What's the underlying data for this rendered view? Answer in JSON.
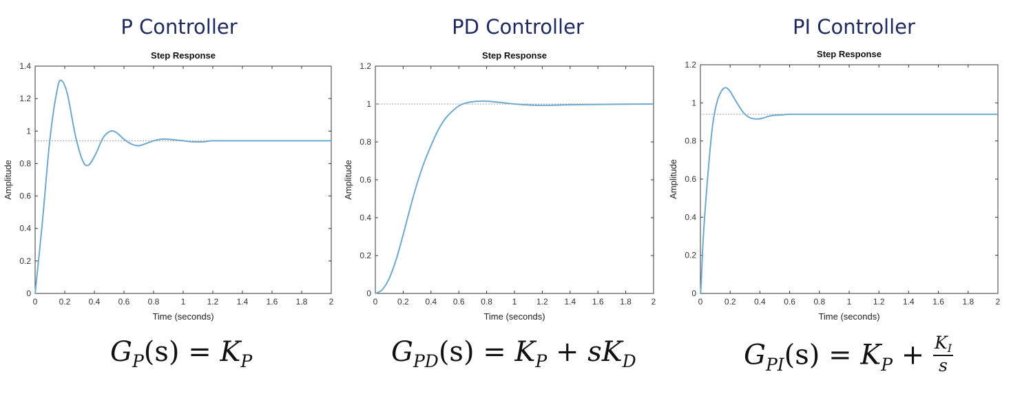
{
  "headings": [
    "P Controller",
    "PD Controller",
    "PI Controller"
  ],
  "formulas": {
    "p": {
      "G": "G",
      "sub": "P",
      "arg": "(s)",
      "eq": "=",
      "K": "K",
      "Ksub": "P"
    },
    "pd": {
      "G": "G",
      "sub": "PD",
      "arg": "(s)",
      "eq": "=",
      "K": "K",
      "Ksub": "P",
      "plus": "+",
      "s": "s",
      "K2": "K",
      "K2sub": "D"
    },
    "pi": {
      "G": "G",
      "sub": "PI",
      "arg": "(s)",
      "eq": "=",
      "K": "K",
      "Ksub": "P",
      "plus": "+",
      "num": "K",
      "numsub": "I",
      "den": "s"
    }
  },
  "colors": {
    "line": "#6ea8cf",
    "reference": "#999999",
    "axis": "#333333",
    "heading": "#1e2a5e"
  },
  "chart_data": [
    {
      "type": "line",
      "title": "Step Response",
      "xlabel": "Time (seconds)",
      "ylabel": "Amplitude",
      "xlim": [
        0,
        2
      ],
      "ylim": [
        0,
        1.4
      ],
      "xticks": [
        "0",
        "0.2",
        "0.4",
        "0.6",
        "0.8",
        "1",
        "1.2",
        "1.4",
        "1.6",
        "1.8",
        "2"
      ],
      "yticks": [
        "0",
        "0.2",
        "0.4",
        "0.6",
        "0.8",
        "1",
        "1.2",
        "1.4"
      ],
      "reference": 0.94,
      "series": [
        {
          "x": [
            0,
            0.05,
            0.1,
            0.15,
            0.18,
            0.22,
            0.27,
            0.32,
            0.36,
            0.41,
            0.46,
            0.51,
            0.55,
            0.6,
            0.65,
            0.7,
            0.74,
            0.8,
            0.85,
            0.9,
            0.95,
            1.0,
            1.05,
            1.1,
            1.15,
            1.2,
            1.4,
            1.6,
            2.0
          ],
          "y": [
            0,
            0.45,
            0.95,
            1.26,
            1.31,
            1.22,
            0.98,
            0.82,
            0.79,
            0.86,
            0.96,
            1.0,
            0.99,
            0.95,
            0.92,
            0.91,
            0.92,
            0.94,
            0.95,
            0.95,
            0.945,
            0.94,
            0.935,
            0.933,
            0.935,
            0.94,
            0.94,
            0.94,
            0.94
          ]
        }
      ]
    },
    {
      "type": "line",
      "title": "Step Response",
      "xlabel": "Time (seconds)",
      "ylabel": "Amplitude",
      "xlim": [
        0,
        2
      ],
      "ylim": [
        0,
        1.2
      ],
      "xticks": [
        "0",
        "0.2",
        "0.4",
        "0.6",
        "0.8",
        "1",
        "1.2",
        "1.4",
        "1.6",
        "1.8",
        "2"
      ],
      "yticks": [
        "0",
        "0.2",
        "0.4",
        "0.6",
        "0.8",
        "1",
        "1.2"
      ],
      "reference": 1.0,
      "series": [
        {
          "x": [
            0,
            0.05,
            0.1,
            0.15,
            0.2,
            0.25,
            0.3,
            0.35,
            0.4,
            0.45,
            0.5,
            0.55,
            0.6,
            0.65,
            0.7,
            0.75,
            0.8,
            0.85,
            0.9,
            1.0,
            1.1,
            1.2,
            1.3,
            1.4,
            1.6,
            1.8,
            2.0
          ],
          "y": [
            0,
            0.02,
            0.08,
            0.18,
            0.31,
            0.45,
            0.58,
            0.69,
            0.78,
            0.86,
            0.92,
            0.96,
            0.99,
            1.005,
            1.012,
            1.015,
            1.015,
            1.012,
            1.008,
            1.0,
            0.995,
            0.993,
            0.994,
            0.996,
            0.998,
            0.999,
            1.0
          ]
        }
      ]
    },
    {
      "type": "line",
      "title": "Step Response",
      "xlabel": "Time (seconds)",
      "ylabel": "Amplitude",
      "xlim": [
        0,
        2
      ],
      "ylim": [
        0,
        1.2
      ],
      "xticks": [
        "0",
        "0.2",
        "0.4",
        "0.6",
        "0.8",
        "1",
        "1.2",
        "1.4",
        "1.6",
        "1.8",
        "2"
      ],
      "yticks": [
        "0",
        "0.2",
        "0.4",
        "0.6",
        "0.8",
        "1",
        "1.2"
      ],
      "reference": 0.94,
      "series": [
        {
          "x": [
            0,
            0.005,
            0.02,
            0.05,
            0.08,
            0.11,
            0.14,
            0.17,
            0.2,
            0.23,
            0.27,
            0.3,
            0.34,
            0.38,
            0.42,
            0.46,
            0.5,
            0.55,
            0.6,
            0.8,
            1.0,
            1.5,
            2.0
          ],
          "y": [
            0,
            0.05,
            0.3,
            0.62,
            0.87,
            1.0,
            1.06,
            1.08,
            1.06,
            1.02,
            0.97,
            0.94,
            0.92,
            0.915,
            0.92,
            0.93,
            0.935,
            0.937,
            0.94,
            0.94,
            0.94,
            0.94,
            0.94
          ]
        }
      ]
    }
  ]
}
